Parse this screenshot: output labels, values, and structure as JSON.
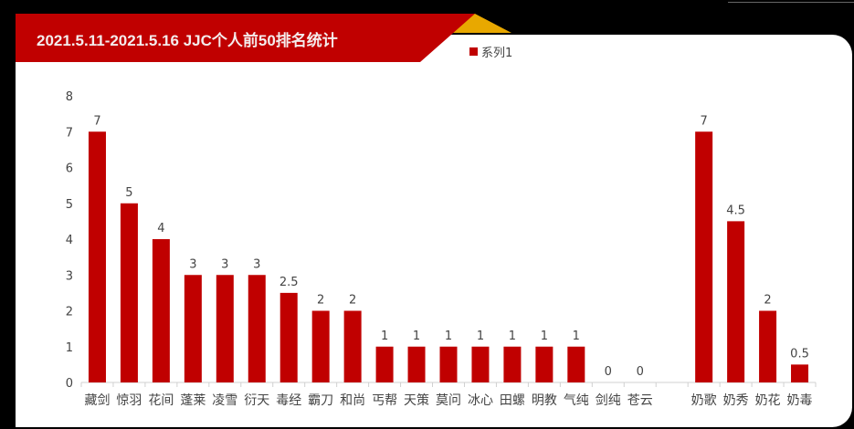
{
  "title": "2021.5.11-2021.5.16 JJC个人前50排名统计",
  "colors": {
    "bar": "#c00000",
    "banner": "#c00000",
    "accent": "#e8a800",
    "background": "#000000",
    "panel": "#ffffff"
  },
  "chart_data": {
    "type": "bar",
    "title": "2021.5.11-2021.5.16 JJC个人前50排名统计",
    "categories": [
      "藏剑",
      "惊羽",
      "花间",
      "蓬莱",
      "凌雪",
      "衍天",
      "毒经",
      "霸刀",
      "和尚",
      "丐帮",
      "天策",
      "莫问",
      "冰心",
      "田螺",
      "明教",
      "气纯",
      "剑纯",
      "苍云",
      "",
      "奶歌",
      "奶秀",
      "奶花",
      "奶毒"
    ],
    "series": [
      {
        "name": "系列1",
        "values": [
          7,
          5,
          4,
          3,
          3,
          3,
          2.5,
          2,
          2,
          1,
          1,
          1,
          1,
          1,
          1,
          1,
          0,
          0,
          null,
          7,
          4.5,
          2,
          0.5
        ]
      }
    ],
    "data_labels": [
      "7",
      "5",
      "4",
      "3",
      "3",
      "3",
      "2.5",
      "2",
      "2",
      "1",
      "1",
      "1",
      "1",
      "1",
      "1",
      "1",
      "0",
      "0",
      "",
      "7",
      "4.5",
      "2",
      "0.5"
    ],
    "ylim": [
      0,
      8
    ],
    "yticks": [
      "0",
      "1",
      "2",
      "3",
      "4",
      "5",
      "6",
      "7",
      "8"
    ],
    "grid": false,
    "legend": "top"
  }
}
